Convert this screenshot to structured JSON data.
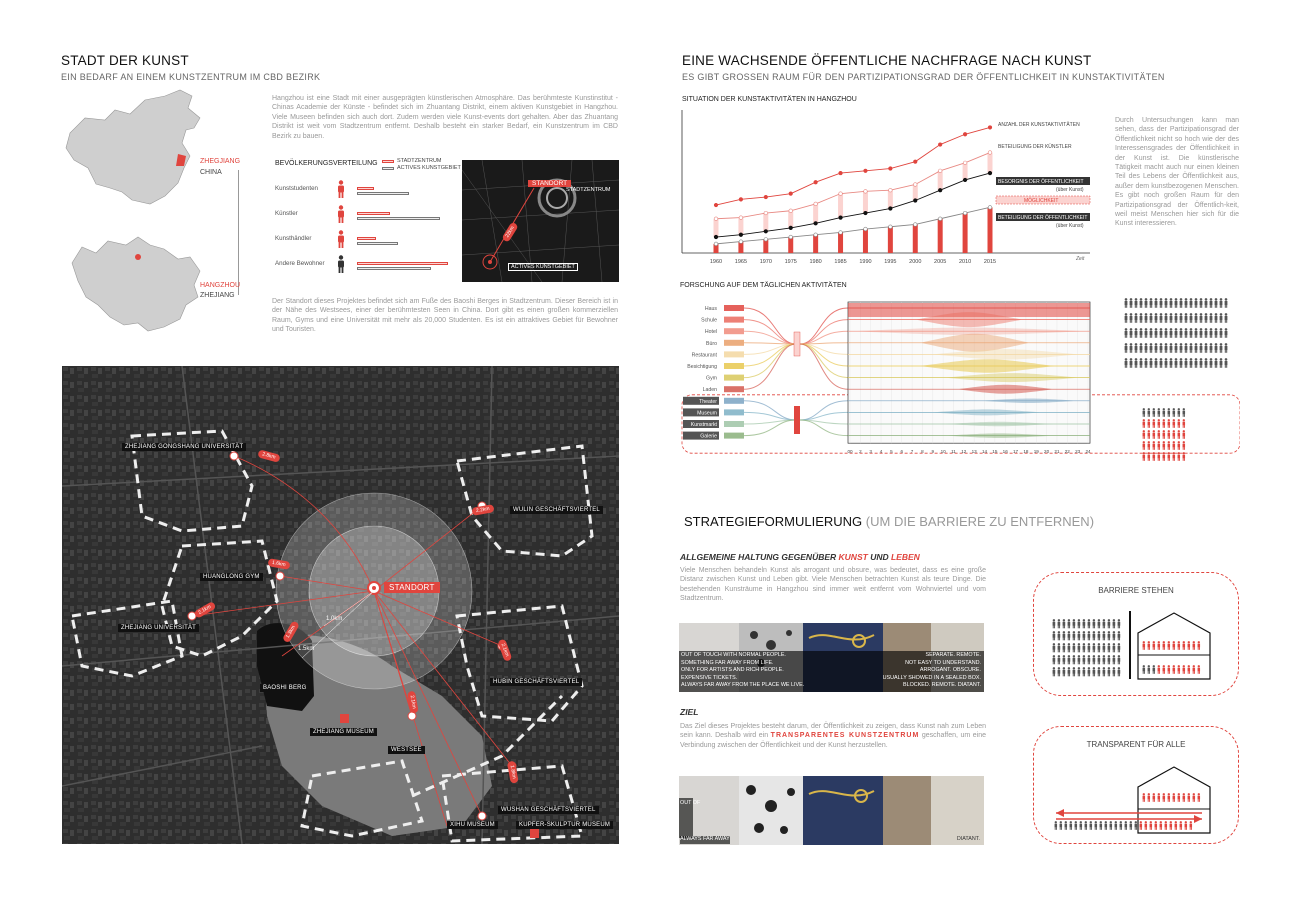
{
  "left": {
    "title": "STADT DER KUNST",
    "subtitle": "EIN BEDARF AN EINEM KUNSTZENTRUM IM CBD BEZIRK",
    "intro": "Hangzhou ist eine Stadt mit einer ausgeprägten künstlerischen Atmosphäre. Das berühmteste Kunstinstitut - Chinas Academie der Künste - befindet sich im Zhuantang Distrikt, einem aktiven Kunstgebiet in Hangzhou. Viele Museen befinden sich auch dort. Zudem werden viele Kunst-events dort gehalten. Aber das Zhuantang Distrikt ist weit vom Stadtzentrum entfernt. Deshalb besteht ein starker Bedarf, ein Kunstzentrum im CBD Bezirk zu bauen.",
    "site_text": "Der Standort dieses Projektes befindet sich am Fuße des Baoshi Berges in Stadtzentrum. Dieser Bereich ist in der Nähe des Westsees, einer der berühmtesten Seen in China. Dort gibt es einen großen kommerziellen Raum, Gyms und eine Universität mit mehr als 20,000 Studenten. Es ist ein attraktives Gebiet für Bewohner und Touristen.",
    "map_china": {
      "red_label": "ZHEGJIANG",
      "label": "CHINA"
    },
    "map_zhejiang": {
      "red_label": "HANGZHOU",
      "label": "ZHEJIANG"
    },
    "population": {
      "title": "BEVÖLKERUNGSVERTEILUNG",
      "legend_a": "STADTZENTRUM",
      "legend_b": "ACTIVES KUNSTGEBIET",
      "rows": [
        {
          "label": "Kunststudenten",
          "a": 0.3,
          "b": 0.95
        },
        {
          "label": "Künstler",
          "a": 0.6,
          "b": 1.5
        },
        {
          "label": "Kunsthändler",
          "a": 0.35,
          "b": 0.75
        },
        {
          "label": "Andere Bewohner",
          "a": 1.65,
          "b": 1.35
        }
      ]
    },
    "inset_map": {
      "standort": "STANDORT",
      "stadtzentrum": "STADTZENTRUM",
      "distance": "22km",
      "kunstgebiet": "ACTIVES KUNSTGEBIET"
    },
    "bigmap": {
      "standort": "STANDORT",
      "r1": "1.0km",
      "r2": "1.5km",
      "labels": {
        "gongshang": "ZHEJIANG GONGSHANG UNIVERSITÄT",
        "wulin": "WULIN GESCHÄFTSVIERTEL",
        "huanglong": "HUANGLONG GYM",
        "uni": "ZHEJIANG UNIVERSITÄT",
        "baoshi": "BAOSHI BERG",
        "hubin": "HUBIN GESCHÄFTSVIERTEL",
        "museum": "ZHEJIANG MUSEUM",
        "westsee": "WESTSEE",
        "wushan": "WUSHAN GESCHÄFTSVIERTEL",
        "xihu": "XIHU MUSEUM",
        "kupfer": "KUPFER-SKULPTUR MUSEUM"
      },
      "pills": [
        "2.8km",
        "2.2km",
        "1.6km",
        "2.1km",
        "1.3km",
        "2.1km",
        "2.1km",
        "1.8km"
      ]
    }
  },
  "right": {
    "title": "EINE WACHSENDE ÖFFENTLICHE NACHFRAGE NACH KUNST",
    "subtitle": "ES GIBT GROSSEN RAUM FÜR DEN PARTIZIPATIONSGRAD DER ÖFFENTLICHKEIT IN KUNSTAKTIVITÄTEN",
    "chart_title": "SITUATION DER KUNSTAKTIVITÄTEN IN HANGZHOU",
    "chart_side_text": "Durch Untersuchungen kann man sehen, dass der Partizipationsgrad der Öffentlichkeit nicht so hoch wie der des Interessensgrades der Öffentlichkeit in der Kunst ist. Die künstlerische Tätigkeit macht auch nur einen kleinen Teil des Lebens der Öffentlichkeit aus, außer dem kunstbezogenen Menschen. Es gibt noch großen Raum für den Partizipationsgrad der Öffentlich-keit, weil meist Menschen hier sich für die Kunst interessieren.",
    "xaxis_unit": "Zeit",
    "series_labels": {
      "kunst": "ANZAHL DER KUNSTAKTIVITÄTEN",
      "kuenstler": "BETEILIGUNG DER KÜNSTLER",
      "besorgnis": "BESORGNIS DER ÖFFENTLICHKEIT",
      "besorgnis_sub": "(über Kunst)",
      "moeglich": "MÖGLICHKEIT",
      "beteiligung": "BETEILIGUNG DER ÖFFENTLICHKEIT",
      "beteiligung_sub": "(über Kunst)"
    },
    "daily_title": "FORSCHUNG AUF DEM TÄGLICHEN AKTIVITÄTEN",
    "activities": [
      "Haus",
      "Schule",
      "Hotel",
      "Büro",
      "Restaurant",
      "Besichtigung",
      "Gym",
      "Laden",
      "Theater",
      "Museum",
      "Kunstmarkt",
      "Galerie"
    ],
    "hours": [
      "00",
      "2",
      "3",
      "4",
      "5",
      "6",
      "7",
      "8",
      "9",
      "10",
      "11",
      "12",
      "13",
      "14",
      "15",
      "16",
      "17",
      "18",
      "19",
      "20",
      "21",
      "22",
      "23",
      "24"
    ],
    "strategy_title": "STRATEGIEFORMULIERUNG",
    "strategy_paren": "(UM DIE BARRIERE ZU ENTFERNEN)",
    "attitude_title_a": "ALLGEMEINE HALTUNG GEGENÜBER",
    "attitude_kunst": "KUNST",
    "attitude_und": "UND",
    "attitude_leben": "LEBEN",
    "attitude_text": "Viele Menschen behandeln Kunst als arrogant und obsure, was bedeutet, dass es eine große Distanz zwischen Kunst und Leben gibt. Viele Menschen betrachten Kunst als teure Dinge. Die bestehenden Kunsträume in Hangzhou sind immer weit entfernt vom Wohnviertel und vom Stadtzentrum.",
    "strip_left": [
      "OUT OF TOUCH WITH NORMAL PEOPLE.",
      "SOMETHING FAR AWAY FROM LIFE.",
      "ONLY FOR ARTISTS AND RICH PEOPLE.",
      "EXPENSIVE TICKETS.",
      "ALWAYS FAR AWAY FROM THE PLACE WE LIVE."
    ],
    "strip_right": [
      "SEPARATE.      REMOTE.",
      "NOT EASY TO UNDERSTAND.",
      "ARROGANT.      OBSCURE.",
      "USUALLY SHOWED IN A SEALED BOX.",
      "BLOCKED.      REMOTE.   DIATANT."
    ],
    "ziel_title": "ZIEL",
    "ziel_text_a": "Das Ziel dieses Projektes besteht darum, der Öffentlichkeit zu zeigen, dass Kunst nah zum Leben sein kann. Deshalb wird ein",
    "ziel_highlight": "TRANSPARENTES KUNSTZENTRUM",
    "ziel_text_b": "geschaffen, um eine Verbindung zwischen der Öffentlichkeit und der Kunst herzustellen.",
    "strip2_left_top": "OUT OF",
    "strip2_left_bottom": "ALWAYS FAR AWAY",
    "strip2_right": "DIATANT.",
    "barrier_title": "BARRIERE STEHEN",
    "transparent_title": "TRANSPARENT FÜR ALLE"
  },
  "chart_data": {
    "type": "line",
    "x": [
      1960,
      1965,
      1970,
      1975,
      1980,
      1985,
      1990,
      1995,
      2000,
      2005,
      2010,
      2015
    ],
    "series": [
      {
        "name": "ANZAHL DER KUNSTAKTIVITÄTEN",
        "values": [
          42,
          47,
          49,
          52,
          62,
          70,
          72,
          74,
          80,
          95,
          104,
          110
        ]
      },
      {
        "name": "BETEILIGUNG DER KÜNSTLER",
        "values": [
          30,
          31,
          35,
          37,
          43,
          52,
          54,
          55,
          60,
          72,
          79,
          88
        ]
      },
      {
        "name": "BESORGNIS DER ÖFFENTLICHKEIT",
        "values": [
          14,
          16,
          19,
          22,
          26,
          31,
          35,
          39,
          46,
          55,
          64,
          70
        ]
      },
      {
        "name": "BETEILIGUNG DER ÖFFENTLICHKEIT",
        "values": [
          8,
          10,
          12,
          14,
          16,
          18,
          21,
          23,
          25,
          30,
          35,
          40
        ]
      }
    ],
    "ylim": [
      0,
      120
    ],
    "xlabel": "Zeit",
    "ylabel": ""
  }
}
